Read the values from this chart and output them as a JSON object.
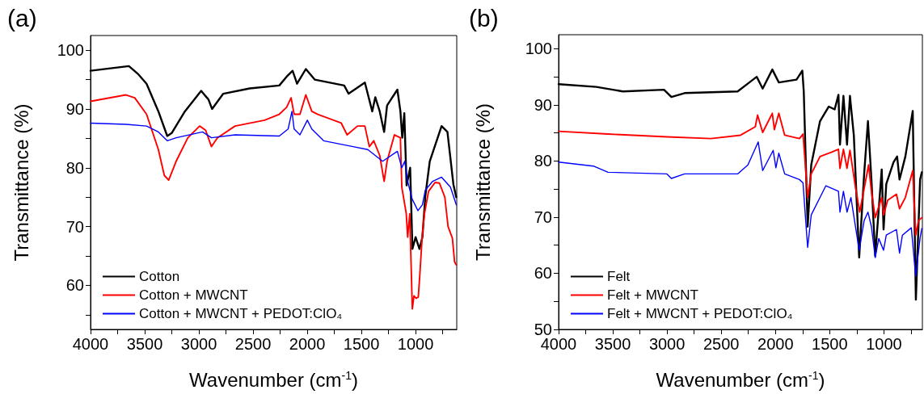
{
  "chart_data": [
    {
      "type": "line",
      "title": "(a)",
      "xlabel": "Wavenumber (cm$^{-1}$)",
      "ylabel": "Transmittance (%)",
      "xlim": [
        4000,
        620
      ],
      "ylim": [
        52.5,
        102.5
      ],
      "xticks": [
        4000,
        {
          "value": 3750,
          "label": null
        },
        3500,
        {
          "value": 3250,
          "label": null
        },
        3000,
        {
          "value": 2750,
          "label": null
        },
        2500,
        {
          "value": 2250,
          "label": null
        },
        2000,
        {
          "value": 1750,
          "label": null
        },
        1500,
        {
          "value": 1250,
          "label": null
        },
        1000,
        {
          "value": 750,
          "label": null
        }
      ],
      "yticks": [
        {
          "value": 55,
          "label": null
        },
        60,
        {
          "value": 65,
          "label": null
        },
        70,
        {
          "value": 75,
          "label": null
        },
        80,
        {
          "value": 85,
          "label": null
        },
        90,
        {
          "value": 95,
          "label": null
        },
        100
      ],
      "grid": false,
      "legend": "bottom left",
      "marker": "none",
      "line_style": "solid",
      "series": [
        {
          "name": "Cotton",
          "color": "#000000",
          "x": [
            4000,
            3646,
            3564,
            3483,
            3374,
            3292,
            3251,
            3129,
            2979,
            2911,
            2878,
            2775,
            2530,
            2258,
            2190,
            2135,
            2094,
            2013,
            1931,
            1659,
            1618,
            1468,
            1400,
            1372,
            1331,
            1290,
            1263,
            1168,
            1140,
            1123,
            1104,
            1083,
            1050,
            1029,
            1000,
            964,
            937,
            910,
            869,
            760,
            706,
            651,
            625
          ],
          "values": [
            96.5,
            97.3,
            96,
            94.3,
            89.6,
            85.4,
            85.9,
            89.6,
            93.1,
            91.6,
            90,
            92.6,
            93.5,
            94,
            95.5,
            96.5,
            94.3,
            96.8,
            95,
            94,
            92.6,
            94.5,
            89.6,
            92,
            89.6,
            86.1,
            90.6,
            93.3,
            89.6,
            85.1,
            89.3,
            77,
            80,
            66.2,
            68.2,
            66.2,
            68.2,
            75.2,
            81.1,
            87.1,
            86.1,
            77.2,
            75
          ]
        },
        {
          "name": "Cotton + MWCNT",
          "color": "#ff0000",
          "x": [
            4000,
            3673,
            3592,
            3483,
            3374,
            3319,
            3279,
            3210,
            3102,
            2993,
            2938,
            2884,
            2829,
            2666,
            2394,
            2258,
            2190,
            2149,
            2121,
            2067,
            2013,
            1958,
            1903,
            1686,
            1632,
            1536,
            1468,
            1427,
            1386,
            1331,
            1290,
            1263,
            1195,
            1140,
            1127,
            1086,
            1073,
            1054,
            1030,
            1015,
            995,
            975,
            960,
            940,
            920,
            880,
            820,
            780,
            730,
            700,
            680,
            660,
            640,
            625
          ],
          "values": [
            91.3,
            92.4,
            91.9,
            89.1,
            83.1,
            78.7,
            77.9,
            81.1,
            85.1,
            87.1,
            86.4,
            83.6,
            85.1,
            87.1,
            88.1,
            89.1,
            90.3,
            91.9,
            89.1,
            89.1,
            92.4,
            89.6,
            89.1,
            87.6,
            85.6,
            87.1,
            87.1,
            83.6,
            84.6,
            82.1,
            77.7,
            81.1,
            85.6,
            85.1,
            76.7,
            72.2,
            68.2,
            72.2,
            56,
            58.2,
            57.8,
            58,
            62,
            68,
            72,
            76,
            77.5,
            77.4,
            75,
            70,
            69,
            68,
            64,
            63.5
          ]
        },
        {
          "name": "Cotton + MWCNT + PEDOT:ClO₄",
          "color": "#0000ff",
          "x": [
            4000,
            3673,
            3483,
            3374,
            3292,
            3210,
            2966,
            2884,
            2666,
            2258,
            2176,
            2141,
            2121,
            2067,
            1999,
            1958,
            1849,
            1577,
            1441,
            1304,
            1168,
            1127,
            1100,
            1073,
            1032,
            978,
            937,
            910,
            842,
            760,
            678,
            624
          ],
          "values": [
            87.6,
            87.4,
            87.1,
            86.1,
            84.6,
            85.1,
            86.1,
            85.1,
            85.6,
            85.4,
            86.6,
            89.6,
            86.6,
            85.6,
            88.1,
            86.6,
            84.6,
            83.6,
            83.1,
            81.1,
            82.8,
            80,
            81.1,
            77.7,
            74.7,
            72.7,
            73.7,
            76.2,
            77.7,
            78.4,
            76.7,
            73.7
          ]
        }
      ]
    },
    {
      "type": "line",
      "title": "(b)",
      "xlabel": "Wavenumber (cm$^{-1}$)",
      "ylabel": "Transmittance (%)",
      "xlim": [
        4000,
        645
      ],
      "ylim": [
        50,
        102.5
      ],
      "xticks": [
        4000,
        {
          "value": 3750,
          "label": null
        },
        3500,
        {
          "value": 3250,
          "label": null
        },
        3000,
        {
          "value": 2750,
          "label": null
        },
        2500,
        {
          "value": 2250,
          "label": null
        },
        2000,
        {
          "value": 1750,
          "label": null
        },
        1500,
        {
          "value": 1250,
          "label": null
        },
        1000,
        {
          "value": 750,
          "label": null
        }
      ],
      "yticks": [
        50,
        {
          "value": 55,
          "label": null
        },
        60,
        {
          "value": 65,
          "label": null
        },
        70,
        {
          "value": 75,
          "label": null
        },
        80,
        {
          "value": 85,
          "label": null
        },
        90,
        {
          "value": 95,
          "label": null
        },
        100
      ],
      "grid": false,
      "legend": "bottom left",
      "marker": "none",
      "line_style": "solid",
      "series": [
        {
          "name": "Felt",
          "color": "#000000",
          "x": [
            4000,
            3652,
            3408,
            3028,
            2960,
            2838,
            2349,
            2241,
            2173,
            2118,
            2029,
            1969,
            1806,
            1752,
            1739,
            1703,
            1670,
            1589,
            1508,
            1454,
            1419,
            1405,
            1373,
            1340,
            1313,
            1277,
            1228,
            1182,
            1147,
            1115,
            1080,
            1047,
            1020,
            1003,
            978,
            911,
            878,
            856,
            802,
            734,
            705,
            666,
            650
          ],
          "values": [
            93.7,
            93.2,
            92.4,
            92.7,
            91.4,
            92.1,
            92.4,
            94,
            95,
            92.9,
            96.3,
            94,
            94.5,
            96.1,
            92.4,
            68.3,
            79.3,
            87.1,
            89.7,
            89.2,
            91.8,
            82.9,
            91.6,
            82.9,
            91.6,
            84.5,
            62.8,
            77.7,
            87.1,
            76.7,
            63.1,
            71.5,
            78.5,
            67.8,
            75.9,
            79.8,
            80.8,
            76.7,
            80.8,
            88.9,
            55.3,
            76.7,
            78
          ]
        },
        {
          "name": "Felt + MWCNT",
          "color": "#ff0000",
          "x": [
            4000,
            3544,
            3001,
            2594,
            2322,
            2186,
            2165,
            2118,
            2029,
            2010,
            1969,
            1915,
            1779,
            1746,
            1730,
            1703,
            1670,
            1589,
            1481,
            1419,
            1405,
            1373,
            1340,
            1313,
            1264,
            1223,
            1182,
            1141,
            1115,
            1080,
            1020,
            1003,
            965,
            884,
            856,
            802,
            734,
            707,
            680,
            650
          ],
          "values": [
            85.3,
            84.8,
            84.3,
            84,
            84.6,
            86.1,
            88.2,
            85.1,
            88.5,
            85.6,
            88.5,
            84.6,
            84,
            84.8,
            80.8,
            73.5,
            77.7,
            80.8,
            81.6,
            82.1,
            78.7,
            82.1,
            78.7,
            81.9,
            75.6,
            70.9,
            75.1,
            79.3,
            74.6,
            69.9,
            73.5,
            70.4,
            73,
            74.1,
            71.5,
            73.5,
            78.3,
            66.8,
            69.4,
            69.9
          ]
        },
        {
          "name": "Felt + MWCNT + PEDOT:ClO₄",
          "color": "#0000ff",
          "x": [
            4000,
            3679,
            3544,
            3001,
            2960,
            2838,
            2349,
            2254,
            2159,
            2118,
            2021,
            1996,
            1969,
            1915,
            1779,
            1746,
            1725,
            1703,
            1670,
            1535,
            1419,
            1405,
            1373,
            1340,
            1304,
            1228,
            1182,
            1147,
            1115,
            1080,
            1047,
            1003,
            978,
            884,
            856,
            829,
            747,
            707,
            666,
            650
          ],
          "values": [
            79.8,
            79.1,
            78,
            77.7,
            76.9,
            77.7,
            77.7,
            79.3,
            83.4,
            78.3,
            81.9,
            78.8,
            81.4,
            77.7,
            76.7,
            76.1,
            70.4,
            64.6,
            70.4,
            75.6,
            74.6,
            70.9,
            74.6,
            70.9,
            73.5,
            64.1,
            69.4,
            70.9,
            68.3,
            62.8,
            66.2,
            64.1,
            66.8,
            67.8,
            63.6,
            66.8,
            68.1,
            59.5,
            66.3,
            68
          ]
        }
      ]
    }
  ]
}
